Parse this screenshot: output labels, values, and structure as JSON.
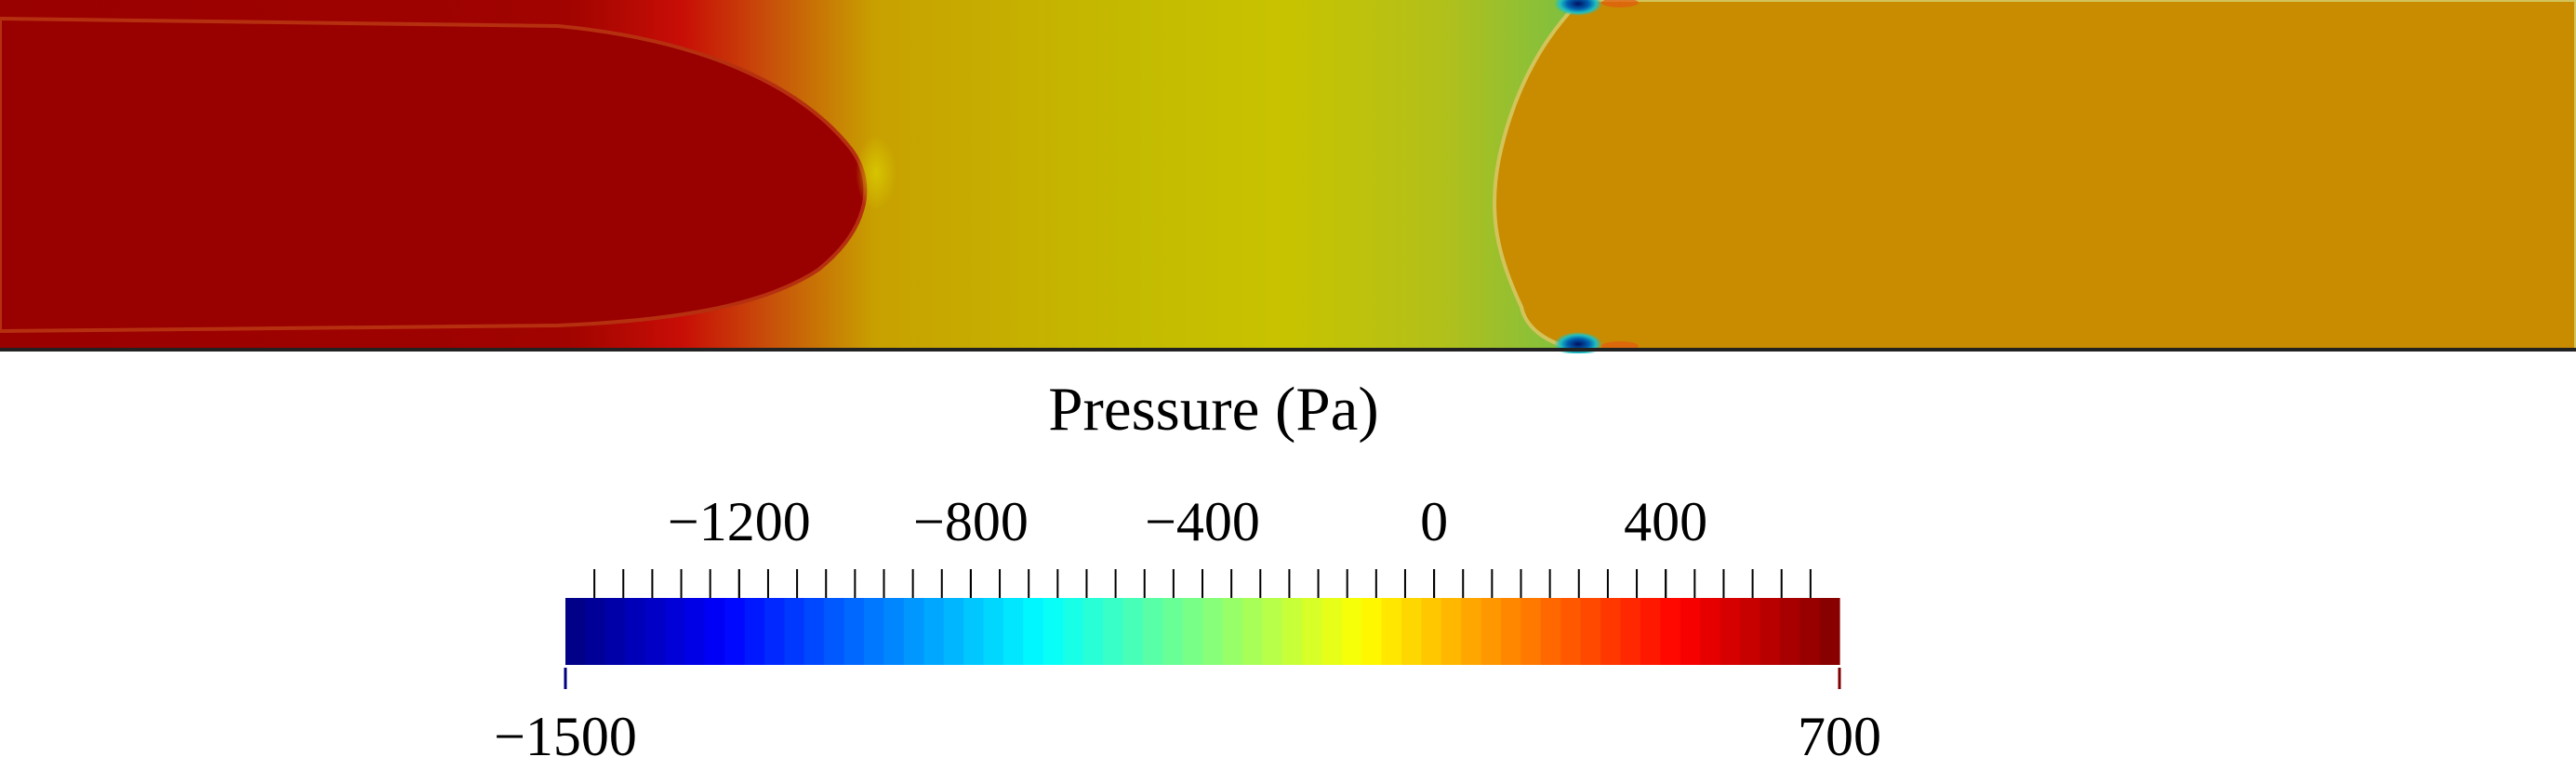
{
  "figure": {
    "quantity": "Pressure",
    "field_colors": {
      "left_bubble": "#990000",
      "left_region": "#C41805",
      "middle_region": "#C8C300",
      "interface_band": "#9EC026",
      "right_region": "#C98C00",
      "wall": "#222222",
      "low_pressure_spot": "#00306E"
    }
  },
  "colorbar": {
    "title": "Pressure (Pa)",
    "min_label": "−1500",
    "max_label": "700",
    "range": [
      -1500,
      700
    ],
    "major_ticks": [
      {
        "value": -1200,
        "label": "−1200"
      },
      {
        "value": -800,
        "label": "−800"
      },
      {
        "value": -400,
        "label": "−400"
      },
      {
        "value": 0,
        "label": "0"
      },
      {
        "value": 400,
        "label": "400"
      }
    ],
    "minor_step": 50,
    "num_colors": 64,
    "colormap": "jet",
    "colormap_stops": [
      "#000080",
      "#0000FF",
      "#00FFFF",
      "#FFFF00",
      "#FF0000",
      "#800000"
    ]
  }
}
